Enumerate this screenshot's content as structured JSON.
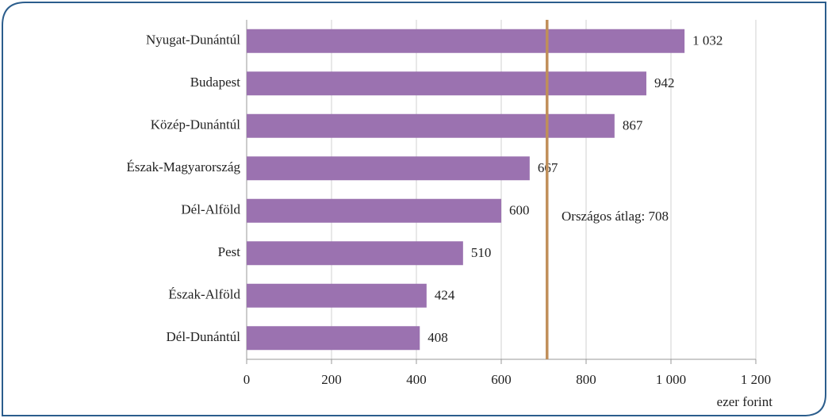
{
  "chart_data": {
    "type": "hbar",
    "categories": [
      "Nyugat-Dunántúl",
      "Budapest",
      "Közép-Dunántúl",
      "Észak-Magyarország",
      "Dél-Alföld",
      "Pest",
      "Észak-Alföld",
      "Dél-Dunántúl"
    ],
    "values": [
      1032,
      942,
      867,
      667,
      600,
      510,
      424,
      408
    ],
    "value_labels": [
      "1 032",
      "942",
      "867",
      "667",
      "600",
      "510",
      "424",
      "408"
    ],
    "color": "#9b72b0",
    "xlim": [
      0,
      1200
    ],
    "xticks": [
      0,
      200,
      400,
      600,
      800,
      {
        "value": 1000,
        "label": "1 000"
      },
      {
        "value": 1200,
        "label": "1 200"
      }
    ],
    "x_label": "ezer forint",
    "grid": true,
    "reference_line": {
      "value": 708,
      "label": "Országos átlag: 708",
      "color": "#c08f5a"
    }
  }
}
